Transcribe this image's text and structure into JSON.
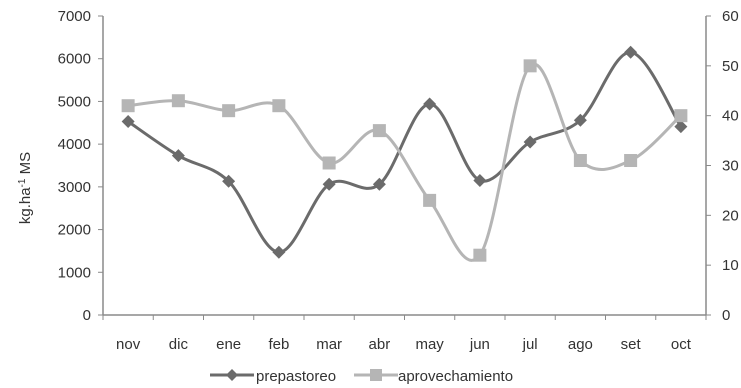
{
  "chart_data": {
    "type": "line",
    "categories": [
      "nov",
      "dic",
      "ene",
      "feb",
      "mar",
      "abr",
      "may",
      "jun",
      "jul",
      "ago",
      "set",
      "oct"
    ],
    "ylabel": "kg.ha-1 MS",
    "ylabel_main": "kg.ha",
    "ylabel_sup": "-1",
    "ylabel_tail": " MS",
    "ylim": [
      0,
      7000
    ],
    "yticks": [
      0,
      1000,
      2000,
      3000,
      4000,
      5000,
      6000,
      7000
    ],
    "y2lim": [
      0,
      60
    ],
    "y2ticks": [
      0,
      10,
      20,
      30,
      40,
      50,
      60
    ],
    "grid": false,
    "legend_position": "bottom",
    "series": [
      {
        "name": "prepastoreo",
        "axis": "left",
        "marker": "diamond",
        "color": "#6b6b6b",
        "values": [
          4530,
          3730,
          3130,
          1470,
          3060,
          3060,
          4940,
          3150,
          4050,
          4560,
          6150,
          4410
        ]
      },
      {
        "name": "aprovechamiento",
        "axis": "right",
        "marker": "square",
        "color": "#b5b5b5",
        "values": [
          42,
          43,
          41,
          42,
          30.5,
          37,
          23,
          12,
          50,
          31,
          31,
          40
        ]
      }
    ]
  }
}
